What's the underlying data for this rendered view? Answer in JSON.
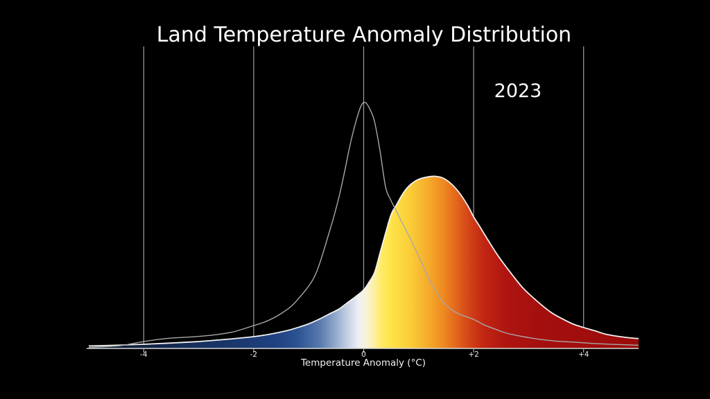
{
  "chart_data": {
    "type": "area",
    "title": "Land Temperature Anomaly Distribution",
    "annotation": "2023",
    "xlabel": "Temperature Anomaly (°C)",
    "xlim": [
      -5,
      5
    ],
    "ylim": [
      0,
      1.06
    ],
    "grid": "vertical-gridlines-at-ticks",
    "legend": "none",
    "background": "#000000",
    "grid_color": "#9e9e9e",
    "axis_color": "#d8d8d8",
    "tick_color": "#b0b0b0",
    "text_color": "#ffffff",
    "x_ticks": [
      {
        "value": -4,
        "label": "-4"
      },
      {
        "value": -2,
        "label": "-2"
      },
      {
        "value": 0,
        "label": "0"
      },
      {
        "value": 2,
        "label": "+2"
      },
      {
        "value": 4,
        "label": "+4"
      }
    ],
    "series": [
      {
        "name": "baseline-distribution",
        "type": "line",
        "color": "#a8a8a8",
        "points": [
          [
            -5,
            0.004
          ],
          [
            -4.7,
            0.007
          ],
          [
            -4.4,
            0.012
          ],
          [
            -4,
            0.028
          ],
          [
            -3.6,
            0.04
          ],
          [
            -3.2,
            0.046
          ],
          [
            -2.8,
            0.053
          ],
          [
            -2.4,
            0.066
          ],
          [
            -2,
            0.093
          ],
          [
            -1.75,
            0.112
          ],
          [
            -1.5,
            0.142
          ],
          [
            -1.3,
            0.175
          ],
          [
            -1.1,
            0.225
          ],
          [
            -0.95,
            0.27
          ],
          [
            -0.85,
            0.315
          ],
          [
            -0.75,
            0.38
          ],
          [
            -0.65,
            0.455
          ],
          [
            -0.55,
            0.53
          ],
          [
            -0.45,
            0.615
          ],
          [
            -0.35,
            0.715
          ],
          [
            -0.25,
            0.825
          ],
          [
            -0.15,
            0.915
          ],
          [
            -0.05,
            0.985
          ],
          [
            0.03,
            1.0
          ],
          [
            0.12,
            0.97
          ],
          [
            0.2,
            0.92
          ],
          [
            0.3,
            0.8
          ],
          [
            0.4,
            0.655
          ],
          [
            0.5,
            0.6
          ],
          [
            0.58,
            0.565
          ],
          [
            0.68,
            0.52
          ],
          [
            0.83,
            0.455
          ],
          [
            1.02,
            0.365
          ],
          [
            1.24,
            0.26
          ],
          [
            1.46,
            0.185
          ],
          [
            1.7,
            0.144
          ],
          [
            2.0,
            0.118
          ],
          [
            2.2,
            0.095
          ],
          [
            2.4,
            0.078
          ],
          [
            2.6,
            0.062
          ],
          [
            2.9,
            0.048
          ],
          [
            3.2,
            0.037
          ],
          [
            3.5,
            0.03
          ],
          [
            3.85,
            0.025
          ],
          [
            4.2,
            0.02
          ],
          [
            4.6,
            0.016
          ],
          [
            5.0,
            0.013
          ]
        ]
      },
      {
        "name": "2023-distribution",
        "type": "filled-area",
        "outline_color": "#f2f2f2",
        "gradient_stops": [
          [
            -5.0,
            "#0b1527"
          ],
          [
            -3.0,
            "#16305e"
          ],
          [
            -1.6,
            "#1f4182"
          ],
          [
            -1.2,
            "#2c5391"
          ],
          [
            -0.8,
            "#5878ae"
          ],
          [
            -0.55,
            "#8ba3c8"
          ],
          [
            -0.3,
            "#c3cfe2"
          ],
          [
            -0.1,
            "#edeff5"
          ],
          [
            0.05,
            "#f8f3d8"
          ],
          [
            0.2,
            "#fdef9e"
          ],
          [
            0.35,
            "#ffe95e"
          ],
          [
            0.5,
            "#ffe348"
          ],
          [
            0.85,
            "#fbcd38"
          ],
          [
            1.2,
            "#f5a82a"
          ],
          [
            1.45,
            "#ee8a20"
          ],
          [
            1.7,
            "#e1641c"
          ],
          [
            1.95,
            "#d03f16"
          ],
          [
            2.2,
            "#c12513"
          ],
          [
            2.6,
            "#ae1510"
          ],
          [
            3.2,
            "#a40f0e"
          ],
          [
            5.0,
            "#9a0c0c"
          ]
        ],
        "points": [
          [
            -5,
            0.01
          ],
          [
            -4.5,
            0.013
          ],
          [
            -4,
            0.017
          ],
          [
            -3.5,
            0.022
          ],
          [
            -3,
            0.028
          ],
          [
            -2.5,
            0.037
          ],
          [
            -2,
            0.048
          ],
          [
            -1.7,
            0.058
          ],
          [
            -1.4,
            0.072
          ],
          [
            -1.2,
            0.085
          ],
          [
            -1.0,
            0.1
          ],
          [
            -0.8,
            0.12
          ],
          [
            -0.6,
            0.143
          ],
          [
            -0.45,
            0.16
          ],
          [
            -0.3,
            0.185
          ],
          [
            -0.15,
            0.21
          ],
          [
            0,
            0.238
          ],
          [
            0.1,
            0.27
          ],
          [
            0.2,
            0.31
          ],
          [
            0.3,
            0.39
          ],
          [
            0.4,
            0.47
          ],
          [
            0.5,
            0.545
          ],
          [
            0.6,
            0.585
          ],
          [
            0.7,
            0.625
          ],
          [
            0.8,
            0.655
          ],
          [
            0.9,
            0.675
          ],
          [
            1.0,
            0.688
          ],
          [
            1.15,
            0.697
          ],
          [
            1.3,
            0.7
          ],
          [
            1.45,
            0.692
          ],
          [
            1.6,
            0.668
          ],
          [
            1.75,
            0.63
          ],
          [
            1.9,
            0.578
          ],
          [
            2.0,
            0.535
          ],
          [
            2.1,
            0.5
          ],
          [
            2.25,
            0.445
          ],
          [
            2.45,
            0.375
          ],
          [
            2.7,
            0.3
          ],
          [
            2.9,
            0.245
          ],
          [
            3.15,
            0.193
          ],
          [
            3.4,
            0.148
          ],
          [
            3.6,
            0.122
          ],
          [
            3.8,
            0.1
          ],
          [
            4.0,
            0.085
          ],
          [
            4.2,
            0.072
          ],
          [
            4.4,
            0.058
          ],
          [
            4.6,
            0.05
          ],
          [
            4.8,
            0.044
          ],
          [
            5.0,
            0.04
          ]
        ]
      }
    ]
  }
}
